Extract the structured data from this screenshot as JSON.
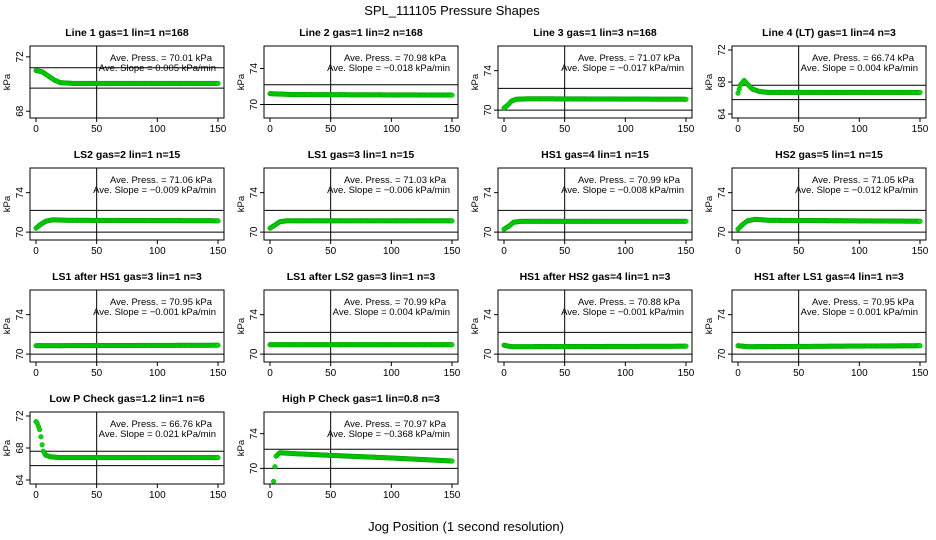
{
  "figure": {
    "title": "SPL_111105  Pressure Shapes",
    "xlabel": "Jog Position (1 second resolution)"
  },
  "annotation_labels": {
    "press_prefix": "Ave. Press. = ",
    "press_unit": " kPa",
    "slope_prefix": "Ave. Slope = ",
    "slope_unit": " kPa/min"
  },
  "colors": {
    "points": "#00dd00",
    "point_edge": "#009900",
    "lines": "#000000"
  },
  "chart_data": [
    {
      "type": "scatter",
      "title": "Line 1 gas=1 lin=1 n=168",
      "ylabel": "kPa",
      "xlim": [
        0,
        150
      ],
      "ylim": [
        67.5,
        72.8
      ],
      "xticks": [
        0,
        50,
        100,
        150
      ],
      "yticks": [
        68,
        72
      ],
      "hlines": [
        69.7,
        71.2
      ],
      "vline": 50,
      "ave_press": "70.01",
      "ave_slope": "0.005",
      "shape": [
        [
          0,
          71.0
        ],
        [
          5,
          70.9
        ],
        [
          10,
          70.6
        ],
        [
          15,
          70.3
        ],
        [
          20,
          70.1
        ],
        [
          30,
          70.05
        ],
        [
          150,
          70.05
        ]
      ]
    },
    {
      "type": "scatter",
      "title": "Line 2 gas=1 lin=2 n=168",
      "ylabel": "kPa",
      "xlim": [
        0,
        150
      ],
      "ylim": [
        68.5,
        76.5
      ],
      "xticks": [
        0,
        50,
        100,
        150
      ],
      "yticks": [
        70,
        74
      ],
      "hlines": [
        70.0,
        72.2
      ],
      "vline": 50,
      "ave_press": "70.98",
      "ave_slope": "-0.018",
      "shape": [
        [
          0,
          71.2
        ],
        [
          20,
          71.1
        ],
        [
          150,
          71.05
        ]
      ]
    },
    {
      "type": "scatter",
      "title": "Line 3 gas=1 lin=3 n=168",
      "ylabel": "kPa",
      "xlim": [
        0,
        150
      ],
      "ylim": [
        69.2,
        76.5
      ],
      "xticks": [
        0,
        50,
        100,
        150
      ],
      "yticks": [
        70,
        74
      ],
      "hlines": [
        70.0,
        72.2
      ],
      "vline": 50,
      "ave_press": "71.07",
      "ave_slope": "-0.017",
      "shape": [
        [
          0,
          70.2
        ],
        [
          3,
          70.5
        ],
        [
          6,
          70.9
        ],
        [
          10,
          71.1
        ],
        [
          20,
          71.15
        ],
        [
          150,
          71.1
        ]
      ]
    },
    {
      "type": "scatter",
      "title": "Line 4 (LT) gas=1 lin=4 n=3",
      "ylabel": "kPa",
      "xlim": [
        0,
        150
      ],
      "ylim": [
        63.5,
        72.5
      ],
      "xticks": [
        0,
        50,
        100,
        150
      ],
      "yticks": [
        64,
        68,
        72
      ],
      "hlines": [
        65.8,
        67.6
      ],
      "vline": 50,
      "ave_press": "66.74",
      "ave_slope": "0.004",
      "shape": [
        [
          0,
          66.6
        ],
        [
          2,
          67.6
        ],
        [
          5,
          68.2
        ],
        [
          8,
          67.7
        ],
        [
          12,
          67.1
        ],
        [
          18,
          66.8
        ],
        [
          25,
          66.7
        ],
        [
          150,
          66.7
        ]
      ]
    },
    {
      "type": "scatter",
      "title": "LS2 gas=2 lin=1 n=15",
      "ylabel": "kPa",
      "xlim": [
        0,
        150
      ],
      "ylim": [
        69.2,
        76.5
      ],
      "xticks": [
        0,
        50,
        100,
        150
      ],
      "yticks": [
        70,
        74
      ],
      "hlines": [
        70.0,
        72.2
      ],
      "vline": 50,
      "ave_press": "71.06",
      "ave_slope": "-0.009",
      "shape": [
        [
          0,
          70.4
        ],
        [
          4,
          70.8
        ],
        [
          8,
          71.1
        ],
        [
          14,
          71.25
        ],
        [
          25,
          71.2
        ],
        [
          150,
          71.15
        ]
      ]
    },
    {
      "type": "scatter",
      "title": "LS1 gas=3 lin=1 n=15",
      "ylabel": "kPa",
      "xlim": [
        0,
        150
      ],
      "ylim": [
        69.2,
        76.5
      ],
      "xticks": [
        0,
        50,
        100,
        150
      ],
      "yticks": [
        70,
        74
      ],
      "hlines": [
        70.0,
        72.2
      ],
      "vline": 50,
      "ave_press": "71.03",
      "ave_slope": "-0.006",
      "shape": [
        [
          0,
          70.4
        ],
        [
          4,
          70.7
        ],
        [
          8,
          71.05
        ],
        [
          14,
          71.15
        ],
        [
          150,
          71.15
        ]
      ]
    },
    {
      "type": "scatter",
      "title": "HS1 gas=4 lin=1 n=15",
      "ylabel": "kPa",
      "xlim": [
        0,
        150
      ],
      "ylim": [
        69.2,
        76.5
      ],
      "xticks": [
        0,
        50,
        100,
        150
      ],
      "yticks": [
        70,
        74
      ],
      "hlines": [
        70.0,
        72.2
      ],
      "vline": 50,
      "ave_press": "70.99",
      "ave_slope": "-0.008",
      "shape": [
        [
          0,
          70.3
        ],
        [
          4,
          70.6
        ],
        [
          8,
          71.0
        ],
        [
          14,
          71.1
        ],
        [
          150,
          71.1
        ]
      ]
    },
    {
      "type": "scatter",
      "title": "HS2 gas=5 lin=1 n=15",
      "ylabel": "kPa",
      "xlim": [
        0,
        150
      ],
      "ylim": [
        69.2,
        76.5
      ],
      "xticks": [
        0,
        50,
        100,
        150
      ],
      "yticks": [
        70,
        74
      ],
      "hlines": [
        70.0,
        72.2
      ],
      "vline": 50,
      "ave_press": "71.05",
      "ave_slope": "-0.012",
      "shape": [
        [
          0,
          70.3
        ],
        [
          4,
          70.8
        ],
        [
          8,
          71.15
        ],
        [
          14,
          71.3
        ],
        [
          25,
          71.2
        ],
        [
          150,
          71.1
        ]
      ]
    },
    {
      "type": "scatter",
      "title": "LS1 after HS1 gas=3 lin=1 n=3",
      "ylabel": "kPa",
      "xlim": [
        0,
        150
      ],
      "ylim": [
        69.2,
        76.5
      ],
      "xticks": [
        0,
        50,
        100,
        150
      ],
      "yticks": [
        70,
        74
      ],
      "hlines": [
        70.0,
        72.2
      ],
      "vline": 50,
      "ave_press": "70.95",
      "ave_slope": "-0.001",
      "shape": [
        [
          0,
          70.85
        ],
        [
          150,
          70.9
        ]
      ]
    },
    {
      "type": "scatter",
      "title": "LS1 after LS2 gas=3 lin=1 n=3",
      "ylabel": "kPa",
      "xlim": [
        0,
        150
      ],
      "ylim": [
        69.2,
        76.5
      ],
      "xticks": [
        0,
        50,
        100,
        150
      ],
      "yticks": [
        70,
        74
      ],
      "hlines": [
        70.0,
        72.2
      ],
      "vline": 50,
      "ave_press": "70.99",
      "ave_slope": "0.004",
      "shape": [
        [
          0,
          70.95
        ],
        [
          150,
          70.95
        ]
      ]
    },
    {
      "type": "scatter",
      "title": "HS1 after HS2 gas=4 lin=1 n=3",
      "ylabel": "kPa",
      "xlim": [
        0,
        150
      ],
      "ylim": [
        69.2,
        76.5
      ],
      "xticks": [
        0,
        50,
        100,
        150
      ],
      "yticks": [
        70,
        74
      ],
      "hlines": [
        70.0,
        72.2
      ],
      "vline": 50,
      "ave_press": "70.88",
      "ave_slope": "-0.001",
      "shape": [
        [
          0,
          70.9
        ],
        [
          6,
          70.75
        ],
        [
          150,
          70.8
        ]
      ]
    },
    {
      "type": "scatter",
      "title": "HS1 after LS1 gas=4 lin=1 n=3",
      "ylabel": "kPa",
      "xlim": [
        0,
        150
      ],
      "ylim": [
        69.2,
        76.5
      ],
      "xticks": [
        0,
        50,
        100,
        150
      ],
      "yticks": [
        70,
        74
      ],
      "hlines": [
        70.0,
        72.2
      ],
      "vline": 50,
      "ave_press": "70.95",
      "ave_slope": "0.001",
      "shape": [
        [
          0,
          70.85
        ],
        [
          8,
          70.75
        ],
        [
          150,
          70.85
        ]
      ]
    },
    {
      "type": "scatter",
      "title": "Low P Check gas=1.2 lin=1 n=6",
      "ylabel": "kPa",
      "xlim": [
        0,
        150
      ],
      "ylim": [
        63.5,
        72.5
      ],
      "xticks": [
        0,
        50,
        100,
        150
      ],
      "yticks": [
        64,
        68,
        72
      ],
      "hlines": [
        65.8,
        67.6
      ],
      "vline": 50,
      "ave_press": "66.76",
      "ave_slope": "0.021",
      "shape": [
        [
          0,
          71.3
        ],
        [
          1,
          71.1
        ],
        [
          3,
          70.3
        ],
        [
          4,
          69.4
        ],
        [
          5,
          68.4
        ],
        [
          6,
          67.6
        ],
        [
          8,
          67.1
        ],
        [
          12,
          66.9
        ],
        [
          20,
          66.8
        ],
        [
          150,
          66.8
        ]
      ]
    },
    {
      "type": "scatter",
      "title": "High P Check gas=1 lin=0.8 n=3",
      "ylabel": "kPa",
      "xlim": [
        0,
        150
      ],
      "ylim": [
        68.2,
        76.5
      ],
      "xticks": [
        0,
        50,
        100,
        150
      ],
      "yticks": [
        70,
        74
      ],
      "hlines": [
        70.0,
        72.2
      ],
      "vline": 50,
      "ave_press": "70.97",
      "ave_slope": "-0.368",
      "shape": [
        [
          3,
          68.5
        ],
        [
          4,
          70.2
        ],
        [
          5,
          71.4
        ],
        [
          8,
          71.8
        ],
        [
          20,
          71.7
        ],
        [
          50,
          71.5
        ],
        [
          100,
          71.2
        ],
        [
          150,
          70.85
        ]
      ]
    }
  ]
}
